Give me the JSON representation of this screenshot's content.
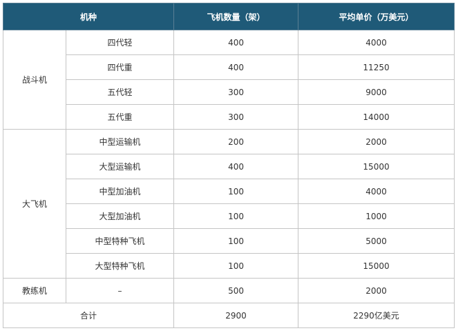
{
  "headers": [
    "机种",
    "飞机数量（架）",
    "平均单价（万美元）"
  ],
  "groups": [
    {
      "category": "战斗机",
      "rows": [
        {
          "type": "四代轻",
          "count": "400",
          "price": "4000"
        },
        {
          "type": "四代重",
          "count": "400",
          "price": "11250"
        },
        {
          "type": "五代轻",
          "count": "300",
          "price": "9000"
        },
        {
          "type": "五代重",
          "count": "300",
          "price": "14000"
        }
      ]
    },
    {
      "category": "大飞机",
      "rows": [
        {
          "type": "中型运输机",
          "count": "200",
          "price": "2000"
        },
        {
          "type": "大型运输机",
          "count": "400",
          "price": "15000"
        },
        {
          "type": "中型加油机",
          "count": "100",
          "price": "4000"
        },
        {
          "type": "大型加油机",
          "count": "100",
          "price": "1000"
        },
        {
          "type": "中型特种飞机",
          "count": "100",
          "price": "5000"
        },
        {
          "type": "大型特种飞机",
          "count": "100",
          "price": "15000"
        }
      ]
    },
    {
      "category": "教练机",
      "rows": [
        {
          "type": "–",
          "count": "500",
          "price": "2000"
        }
      ]
    }
  ],
  "total": {
    "label": "合计",
    "count": "2900",
    "price": "2290亿美元"
  }
}
